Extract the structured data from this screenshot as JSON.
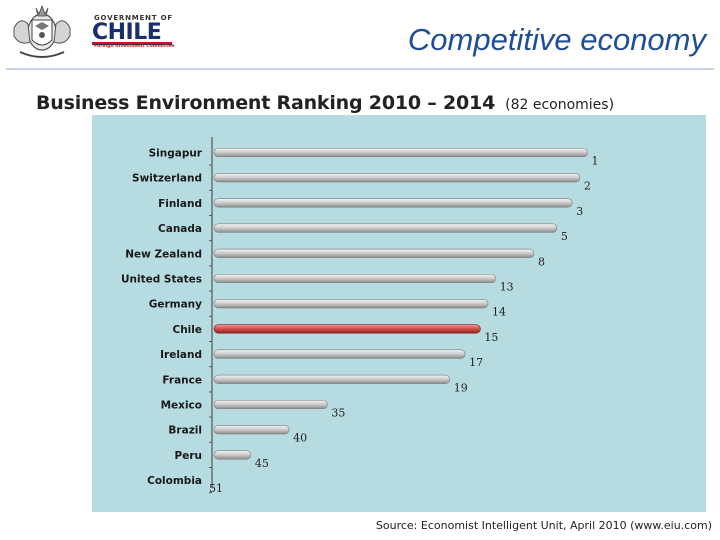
{
  "header": {
    "government_label": "GOVERNMENT OF",
    "country_name": "CHILE",
    "committee_label": "Foreign Investment Committee",
    "page_title": "Competitive economy"
  },
  "subtitle": {
    "main": "Business Environment Ranking 2010 – 2014",
    "note": "(82 economies)"
  },
  "source": "Source: Economist Intelligent Unit, April 2010 (www.eiu.com)",
  "colors": {
    "accent_title": "#1f4e98",
    "bar_default": "#c6c6c6",
    "bar_highlight": "#d9534f",
    "panel_background": "#b6dbe1"
  },
  "chart_data": {
    "type": "bar",
    "orientation": "horizontal",
    "title": "Business Environment Ranking 2010 – 2014",
    "xlabel": "",
    "ylabel": "",
    "categories": [
      "Singapur",
      "Switzerland",
      "Finland",
      "Canada",
      "New Zealand",
      "United States",
      "Germany",
      "Chile",
      "Ireland",
      "France",
      "Mexico",
      "Brazil",
      "Peru",
      "Colombia"
    ],
    "values": [
      1,
      2,
      3,
      5,
      8,
      13,
      14,
      15,
      17,
      19,
      35,
      40,
      45,
      51
    ],
    "highlight": "Chile",
    "value_scale": "rank (lower is better)",
    "xlim": [
      0,
      82
    ],
    "grid": false,
    "legend": "none"
  }
}
